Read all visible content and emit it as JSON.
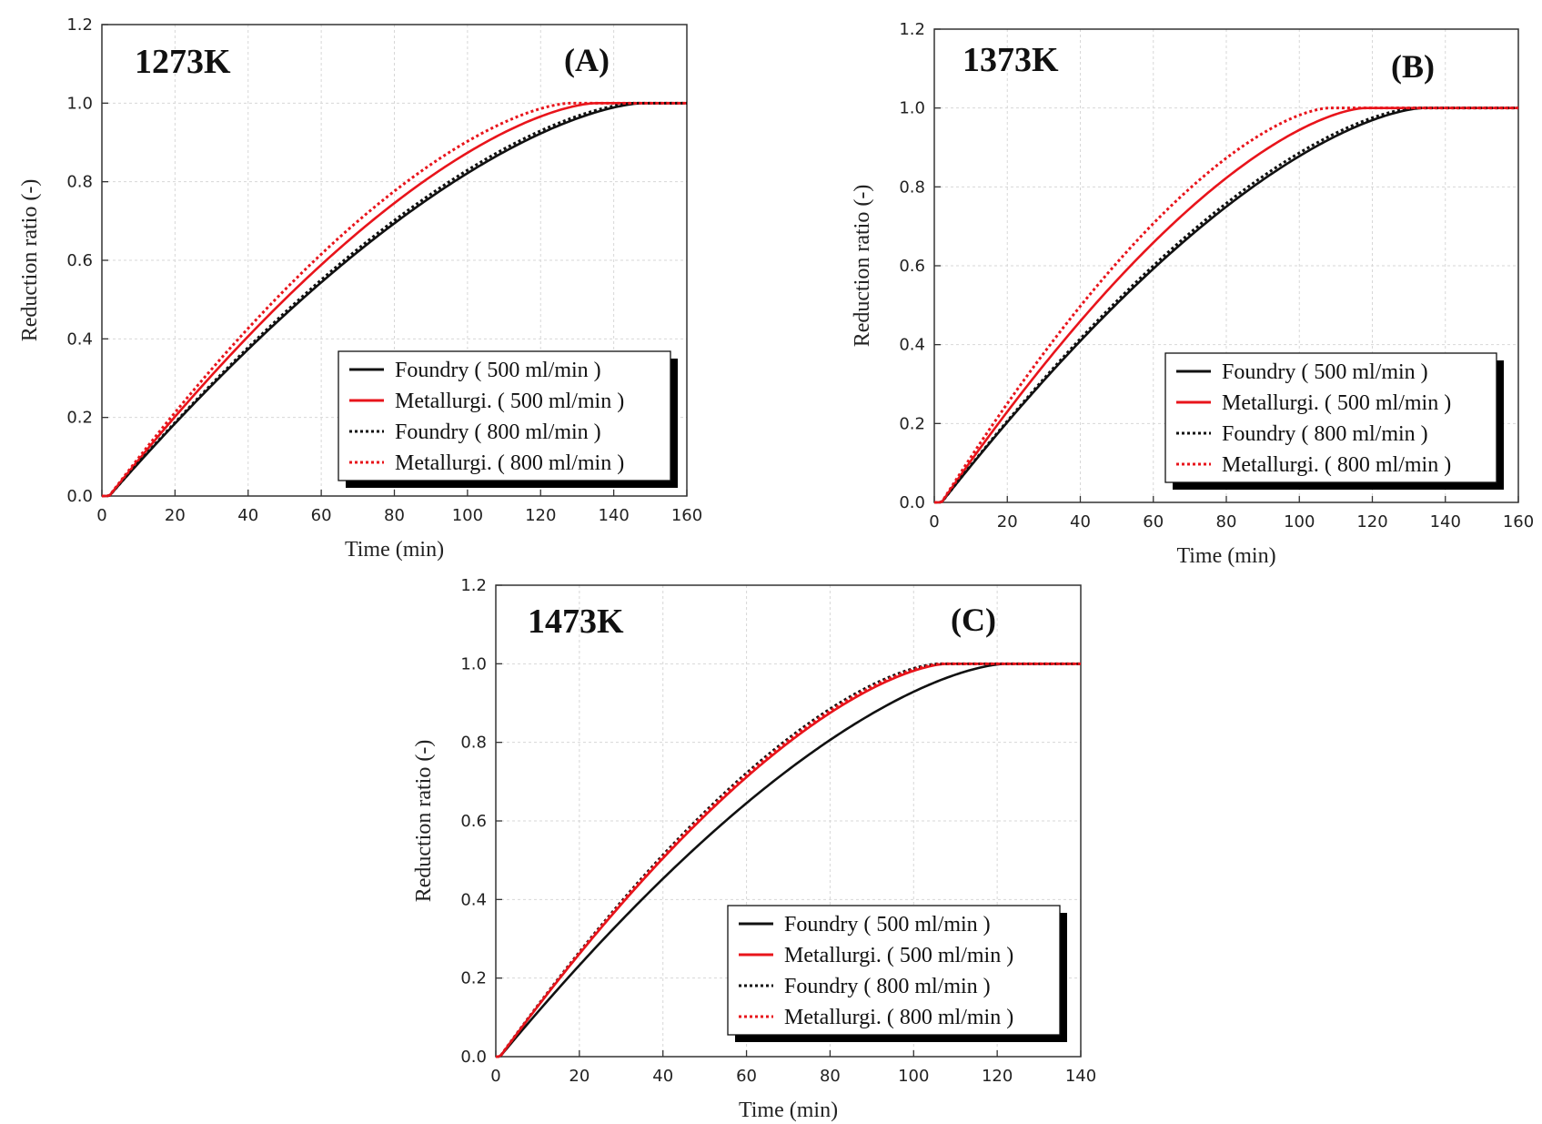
{
  "figure": {
    "panels": [
      "A",
      "B",
      "C"
    ]
  },
  "colors": {
    "foundry": "#111111",
    "metallurgi": "#e8141b"
  },
  "chart_data": [
    {
      "id": "A",
      "type": "line",
      "panel_label": "(A)",
      "temperature": "1273K",
      "xlabel": "Time (min)",
      "ylabel": "Reduction ratio (-)",
      "xlim": [
        0,
        160
      ],
      "ylim": [
        0,
        1.2
      ],
      "xticks": [
        0,
        20,
        40,
        60,
        80,
        100,
        120,
        140,
        160
      ],
      "yticks": [
        0.0,
        0.2,
        0.4,
        0.6,
        0.8,
        1.0,
        1.2
      ],
      "xtick_labels": [
        "0",
        "20",
        "40",
        "60",
        "80",
        "100",
        "120",
        "140",
        "160"
      ],
      "ytick_labels": [
        "0.0",
        "0.2",
        "0.4",
        "0.6",
        "0.8",
        "1.0",
        "1.2"
      ],
      "grid": true,
      "legend_position": "bottom-right",
      "series": [
        {
          "name": "Foundry ( 500 ml/min )",
          "color": "#111111",
          "dash": "solid",
          "t0": 2,
          "t_end": 148,
          "k": 0.0085
        },
        {
          "name": "Metallurgi. ( 500 ml/min )",
          "color": "#e8141b",
          "dash": "solid",
          "t0": 2,
          "t_end": 135,
          "k": 0.0092
        },
        {
          "name": "Foundry ( 800 ml/min )",
          "color": "#111111",
          "dash": "dotted",
          "t0": 2,
          "t_end": 146,
          "k": 0.0087
        },
        {
          "name": "Metallurgi. ( 800 ml/min )",
          "color": "#e8141b",
          "dash": "dotted",
          "t0": 2,
          "t_end": 128,
          "k": 0.0097
        }
      ]
    },
    {
      "id": "B",
      "type": "line",
      "panel_label": "(B)",
      "temperature": "1373K",
      "xlabel": "Time (min)",
      "ylabel": "Reduction ratio (-)",
      "xlim": [
        0,
        160
      ],
      "ylim": [
        0,
        1.2
      ],
      "xticks": [
        0,
        20,
        40,
        60,
        80,
        100,
        120,
        140,
        160
      ],
      "yticks": [
        0.0,
        0.2,
        0.4,
        0.6,
        0.8,
        1.0,
        1.2
      ],
      "xtick_labels": [
        "0",
        "20",
        "40",
        "60",
        "80",
        "100",
        "120",
        "140",
        "160"
      ],
      "ytick_labels": [
        "0.0",
        "0.2",
        "0.4",
        "0.6",
        "0.8",
        "1.0",
        "1.2"
      ],
      "grid": true,
      "legend_position": "bottom-right",
      "series": [
        {
          "name": "Foundry ( 500 ml/min )",
          "color": "#111111",
          "dash": "solid",
          "t0": 2,
          "t_end": 134,
          "k": 0.0093
        },
        {
          "name": "Metallurgi. ( 500 ml/min )",
          "color": "#e8141b",
          "dash": "solid",
          "t0": 2,
          "t_end": 118,
          "k": 0.0107
        },
        {
          "name": "Foundry ( 800 ml/min )",
          "color": "#111111",
          "dash": "dotted",
          "t0": 2,
          "t_end": 132,
          "k": 0.0095
        },
        {
          "name": "Metallurgi. ( 800 ml/min )",
          "color": "#e8141b",
          "dash": "dotted",
          "t0": 2,
          "t_end": 108,
          "k": 0.0118
        }
      ]
    },
    {
      "id": "C",
      "type": "line",
      "panel_label": "(C)",
      "temperature": "1473K",
      "xlabel": "Time (min)",
      "ylabel": "Reduction ratio (-)",
      "xlim": [
        0,
        140
      ],
      "ylim": [
        0,
        1.2
      ],
      "xticks": [
        0,
        20,
        40,
        60,
        80,
        100,
        120,
        140
      ],
      "yticks": [
        0.0,
        0.2,
        0.4,
        0.6,
        0.8,
        1.0,
        1.2
      ],
      "xtick_labels": [
        "0",
        "20",
        "40",
        "60",
        "80",
        "100",
        "120",
        "140"
      ],
      "ytick_labels": [
        "0.0",
        "0.2",
        "0.4",
        "0.6",
        "0.8",
        "1.0",
        "1.2"
      ],
      "grid": true,
      "legend_position": "bottom-right",
      "series": [
        {
          "name": "Foundry ( 500 ml/min )",
          "color": "#111111",
          "dash": "solid",
          "t0": 1,
          "t_end": 122,
          "k": 0.01
        },
        {
          "name": "Metallurgi. ( 500 ml/min )",
          "color": "#e8141b",
          "dash": "solid",
          "t0": 1,
          "t_end": 108,
          "k": 0.0115
        },
        {
          "name": "Foundry ( 800 ml/min )",
          "color": "#111111",
          "dash": "dotted",
          "t0": 1,
          "t_end": 106,
          "k": 0.0118
        },
        {
          "name": "Metallurgi. ( 800 ml/min )",
          "color": "#e8141b",
          "dash": "dotted",
          "t0": 1,
          "t_end": 107,
          "k": 0.0117
        }
      ]
    }
  ]
}
